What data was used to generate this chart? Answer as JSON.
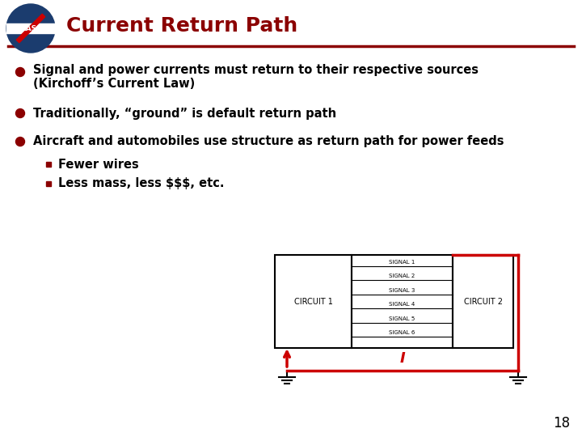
{
  "title": "Current Return Path",
  "title_color": "#8B0000",
  "title_fontsize": 18,
  "bg_color": "#FFFFFF",
  "separator_color": "#8B0000",
  "bullet_color": "#8B0000",
  "text_color": "#000000",
  "bullet1": "Signal and power currents must return to their respective sources\n(Kirchoff’s Current Law)",
  "bullet2": "Traditionally, “ground” is default return path",
  "bullet3": "Aircraft and automobiles use structure as return path for power feeds",
  "sub1": "Fewer wires",
  "sub2": "Less mass, less $$$, etc.",
  "page_number": "18",
  "circuit_signals": [
    "SIGNAL 1",
    "SIGNAL 2",
    "SIGNAL 3",
    "SIGNAL 4",
    "SIGNAL 5",
    "SIGNAL 6"
  ],
  "circuit1_label": "CIRCUIT 1",
  "circuit2_label": "CIRCUIT 2",
  "red_color": "#CC0000",
  "black_color": "#000000",
  "nasa_blue": "#1a3a6b",
  "header_bg": "#FFFFFF"
}
